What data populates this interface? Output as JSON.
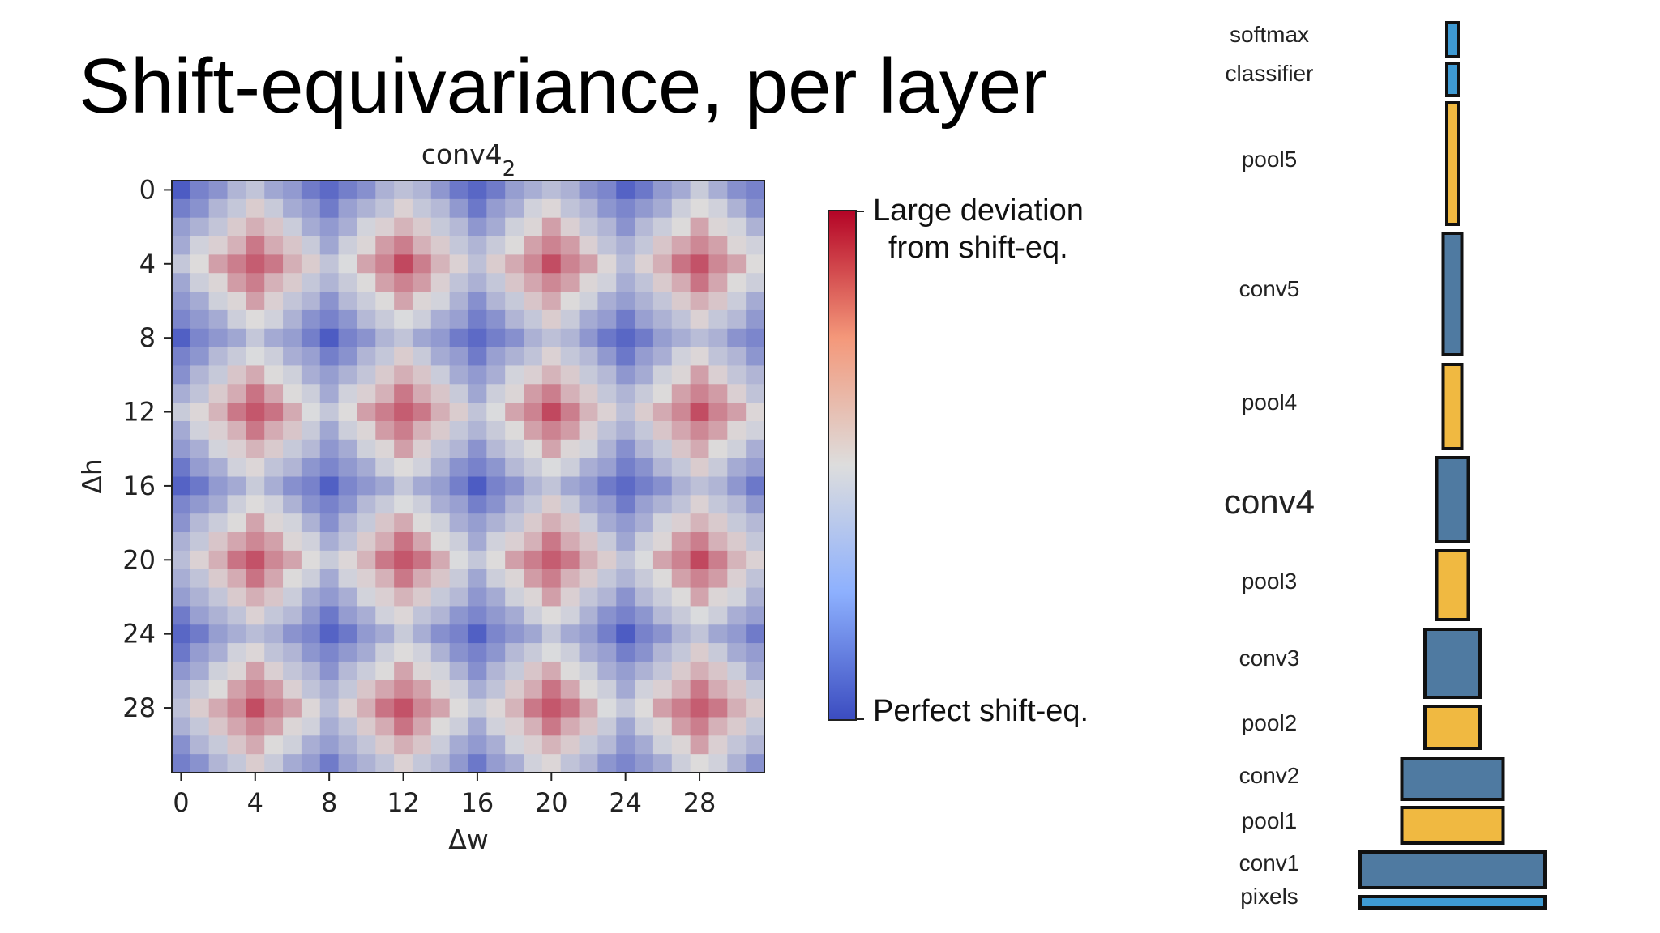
{
  "slide": {
    "title": "Shift-equivariance, per layer"
  },
  "chart_data": {
    "type": "heatmap",
    "title": "conv4",
    "title_subscript": "2",
    "xlabel": "Δw",
    "ylabel": "Δh",
    "x_range": [
      0,
      31
    ],
    "y_range": [
      0,
      31
    ],
    "x_ticks": [
      "0",
      "4",
      "8",
      "12",
      "16",
      "20",
      "24",
      "28"
    ],
    "y_ticks": [
      "0",
      "4",
      "8",
      "12",
      "16",
      "20",
      "24",
      "28"
    ],
    "period": 8,
    "value_description_scale": [
      0,
      1
    ],
    "grid_size": 32,
    "colormap": {
      "low": "#3b4cc0",
      "mid": "#dddddd",
      "high": "#b40426"
    },
    "colorbar": {
      "top_label_line1": "Large deviation",
      "top_label_line2": "from shift-eq.",
      "bottom_label": "Perfect shift-eq."
    }
  },
  "network": {
    "layers": [
      {
        "name": "softmax",
        "kind": "fc",
        "width_rel": 0.06,
        "emphasis": false
      },
      {
        "name": "classifier",
        "kind": "fc",
        "width_rel": 0.06,
        "emphasis": false
      },
      {
        "name": "pool5",
        "kind": "pool",
        "width_rel": 0.06,
        "emphasis": false
      },
      {
        "name": "conv5",
        "kind": "conv",
        "width_rel": 0.1,
        "emphasis": false
      },
      {
        "name": "pool4",
        "kind": "pool",
        "width_rel": 0.1,
        "emphasis": false
      },
      {
        "name": "conv4",
        "kind": "conv",
        "width_rel": 0.17,
        "emphasis": true
      },
      {
        "name": "pool3",
        "kind": "pool",
        "width_rel": 0.17,
        "emphasis": false
      },
      {
        "name": "conv3",
        "kind": "conv",
        "width_rel": 0.3,
        "emphasis": false
      },
      {
        "name": "pool2",
        "kind": "pool",
        "width_rel": 0.3,
        "emphasis": false
      },
      {
        "name": "conv2",
        "kind": "conv",
        "width_rel": 0.55,
        "emphasis": false
      },
      {
        "name": "pool1",
        "kind": "pool",
        "width_rel": 0.55,
        "emphasis": false
      },
      {
        "name": "conv1",
        "kind": "conv",
        "width_rel": 1.0,
        "emphasis": false
      },
      {
        "name": "pixels",
        "kind": "input",
        "width_rel": 1.0,
        "emphasis": false
      }
    ],
    "colors": {
      "conv": "#4f7aa1",
      "pool": "#f0b941",
      "fc": "#3e9ad3",
      "input": "#3e9ad3",
      "stroke": "#111111"
    }
  }
}
